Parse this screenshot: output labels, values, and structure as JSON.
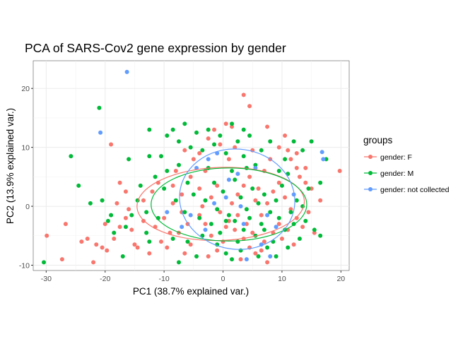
{
  "chart_data": {
    "type": "scatter",
    "title": "PCA of SARS-Cov2 gene expression by gender",
    "xlabel": "PC1 (38.7% explained var.)",
    "ylabel": "PC2 (13.9% explained var.)",
    "xlim": [
      -32.2,
      21.4
    ],
    "ylim": [
      -10.9,
      24.7
    ],
    "xticks": [
      -30,
      -20,
      -10,
      0,
      10,
      20
    ],
    "yticks": [
      -10,
      0,
      10,
      20
    ],
    "grid": true,
    "legend_title": "groups",
    "legend_position": "right",
    "series": [
      {
        "name": "gender: F",
        "color": "#F8766D",
        "points": [
          [
            -29.9,
            -5.0
          ],
          [
            -27.3,
            -9.0
          ],
          [
            -26.7,
            -3.0
          ],
          [
            -23.0,
            -5.5
          ],
          [
            -21.5,
            -6.5
          ],
          [
            -20.0,
            -3.0
          ],
          [
            -19.7,
            -7.5
          ],
          [
            -18.5,
            -5.5
          ],
          [
            -17.5,
            -3.5
          ],
          [
            -16.5,
            -2.0
          ],
          [
            -15.5,
            -4.0
          ],
          [
            -15.0,
            -6.5
          ],
          [
            -13.5,
            -2.5
          ],
          [
            -19.0,
            10.5
          ],
          [
            -17.5,
            4.0
          ],
          [
            -16.5,
            2.5
          ],
          [
            -18.0,
            0.5
          ],
          [
            -16.0,
            -0.5
          ],
          [
            -12.5,
            -8.0
          ],
          [
            -9.5,
            -7.0
          ],
          [
            -11.0,
            4.0
          ],
          [
            -12.0,
            2.5
          ],
          [
            -13.5,
            1.0
          ],
          [
            -10.0,
            -2.0
          ],
          [
            -7.5,
            -4.5
          ],
          [
            -6.0,
            -3.0
          ],
          [
            -8.5,
            0.5
          ],
          [
            -7.0,
            2.0
          ],
          [
            -5.5,
            5.0
          ],
          [
            -4.0,
            3.0
          ],
          [
            -3.0,
            6.0
          ],
          [
            -5.0,
            8.0
          ],
          [
            -4.0,
            9.0
          ],
          [
            -2.5,
            11.5
          ],
          [
            -1.5,
            13.0
          ],
          [
            0.5,
            14.0
          ],
          [
            1.5,
            13.5
          ],
          [
            3.5,
            18.9
          ],
          [
            4.5,
            17.0
          ],
          [
            7.5,
            13.5
          ],
          [
            9.5,
            10.0
          ],
          [
            10.5,
            12.0
          ],
          [
            11.0,
            9.5
          ],
          [
            11.5,
            8.0
          ],
          [
            12.5,
            6.5
          ],
          [
            13.0,
            5.0
          ],
          [
            14.0,
            4.0
          ],
          [
            15.0,
            3.0
          ],
          [
            19.8,
            6.0
          ],
          [
            9.5,
            -3.0
          ],
          [
            8.5,
            -4.5
          ],
          [
            10.0,
            -5.5
          ],
          [
            7.0,
            -6.0
          ],
          [
            6.5,
            -7.5
          ],
          [
            7.5,
            -9.5
          ],
          [
            5.5,
            -8.0
          ],
          [
            4.5,
            -7.0
          ],
          [
            3.5,
            -5.5
          ],
          [
            2.0,
            -4.0
          ],
          [
            1.0,
            -2.5
          ],
          [
            0.0,
            -6.0
          ],
          [
            -1.0,
            -7.5
          ],
          [
            -2.0,
            -5.0
          ],
          [
            -3.0,
            -3.0
          ],
          [
            -4.0,
            -1.5
          ],
          [
            -5.5,
            -6.5
          ],
          [
            -6.5,
            -8.0
          ],
          [
            -2.5,
            -8.5
          ],
          [
            -0.5,
            -1.0
          ],
          [
            1.5,
            0.5
          ],
          [
            2.5,
            2.0
          ],
          [
            3.5,
            3.5
          ],
          [
            4.5,
            5.0
          ],
          [
            5.5,
            1.0
          ],
          [
            6.5,
            -1.5
          ],
          [
            7.5,
            0.5
          ],
          [
            8.5,
            2.5
          ],
          [
            9.5,
            4.0
          ],
          [
            10.5,
            1.5
          ],
          [
            11.5,
            -0.5
          ],
          [
            12.5,
            -2.0
          ],
          [
            13.5,
            -3.5
          ],
          [
            11.0,
            -4.0
          ],
          [
            -2.0,
            1.5
          ],
          [
            -3.5,
            0.0
          ],
          [
            -1.0,
            3.5
          ],
          [
            0.5,
            -3.5
          ],
          [
            2.5,
            -1.5
          ],
          [
            4.0,
            -3.0
          ],
          [
            5.0,
            -4.5
          ],
          [
            6.0,
            3.0
          ],
          [
            7.0,
            6.0
          ],
          [
            8.0,
            8.0
          ],
          [
            -8.0,
            6.0
          ],
          [
            -9.0,
            -4.5
          ],
          [
            -6.5,
            9.5
          ],
          [
            -10.5,
            -6.0
          ],
          [
            -11.5,
            -3.5
          ],
          [
            -7.0,
            -1.0
          ],
          [
            1.0,
            8.0
          ],
          [
            2.0,
            10.0
          ],
          [
            -0.5,
            10.5
          ],
          [
            3.0,
            -9.0
          ],
          [
            12.0,
            -6.5
          ],
          [
            14.5,
            -1.0
          ],
          [
            15.5,
            -4.5
          ],
          [
            16.5,
            1.0
          ],
          [
            14.0,
            6.5
          ],
          [
            12.5,
            9.0
          ],
          [
            -14.5,
            -7.0
          ],
          [
            -20.5,
            -7.0
          ],
          [
            -22.0,
            -9.5
          ],
          [
            -24.0,
            -6.0
          ],
          [
            -8.5,
            3.5
          ],
          [
            5.0,
            9.5
          ]
        ]
      },
      {
        "name": "gender: M",
        "color": "#00BA38",
        "points": [
          [
            -30.4,
            -9.5
          ],
          [
            -25.8,
            8.5
          ],
          [
            -24.5,
            3.5
          ],
          [
            -21.0,
            16.7
          ],
          [
            -20.5,
            1.0
          ],
          [
            -19.5,
            -2.5
          ],
          [
            -18.5,
            -4.5
          ],
          [
            -17.0,
            -8.5
          ],
          [
            -15.5,
            -1.5
          ],
          [
            -14.0,
            3.5
          ],
          [
            -13.0,
            -4.5
          ],
          [
            -12.5,
            -6.0
          ],
          [
            -11.0,
            -2.0
          ],
          [
            -12.5,
            13.0
          ],
          [
            -10.5,
            8.5
          ],
          [
            -12.5,
            8.5
          ],
          [
            -9.5,
            6.0
          ],
          [
            -8.5,
            -5.5
          ],
          [
            -7.5,
            -9.5
          ],
          [
            -6.0,
            -6.0
          ],
          [
            -4.5,
            -8.5
          ],
          [
            -3.5,
            -5.0
          ],
          [
            -2.0,
            -3.0
          ],
          [
            -1.0,
            -6.5
          ],
          [
            0.5,
            -8.0
          ],
          [
            1.5,
            -9.0
          ],
          [
            2.5,
            -6.0
          ],
          [
            3.5,
            -4.0
          ],
          [
            4.5,
            -2.0
          ],
          [
            5.5,
            -5.0
          ],
          [
            6.5,
            -3.0
          ],
          [
            7.5,
            -7.0
          ],
          [
            8.5,
            -6.0
          ],
          [
            9.5,
            -2.0
          ],
          [
            10.5,
            -4.0
          ],
          [
            11.5,
            -1.0
          ],
          [
            12.5,
            1.0
          ],
          [
            13.5,
            0.0
          ],
          [
            14.5,
            3.0
          ],
          [
            15.5,
            -4.0
          ],
          [
            16.5,
            -5.0
          ],
          [
            17.5,
            8.0
          ],
          [
            16.5,
            4.0
          ],
          [
            15.0,
            11.0
          ],
          [
            13.5,
            9.5
          ],
          [
            12.0,
            11.0
          ],
          [
            10.5,
            8.0
          ],
          [
            9.5,
            6.0
          ],
          [
            8.0,
            11.0
          ],
          [
            6.5,
            9.5
          ],
          [
            5.5,
            7.0
          ],
          [
            4.5,
            12.0
          ],
          [
            3.5,
            13.0
          ],
          [
            2.5,
            11.0
          ],
          [
            1.5,
            14.0
          ],
          [
            0.5,
            9.0
          ],
          [
            -0.5,
            12.0
          ],
          [
            -1.5,
            10.5
          ],
          [
            -2.5,
            13.0
          ],
          [
            -3.5,
            9.5
          ],
          [
            -4.5,
            12.5
          ],
          [
            -5.5,
            10.0
          ],
          [
            -6.5,
            14.0
          ],
          [
            -7.5,
            11.0
          ],
          [
            -8.5,
            13.0
          ],
          [
            -9.5,
            12.0
          ],
          [
            -11.5,
            5.0
          ],
          [
            -10.0,
            3.0
          ],
          [
            -8.0,
            1.0
          ],
          [
            -6.5,
            -1.0
          ],
          [
            -5.0,
            2.0
          ],
          [
            -3.0,
            1.0
          ],
          [
            -1.5,
            4.0
          ],
          [
            0.0,
            2.5
          ],
          [
            1.0,
            -1.5
          ],
          [
            2.0,
            4.5
          ],
          [
            3.0,
            1.5
          ],
          [
            4.0,
            -0.5
          ],
          [
            5.0,
            3.0
          ],
          [
            6.0,
            0.5
          ],
          [
            7.0,
            2.0
          ],
          [
            8.0,
            -1.0
          ],
          [
            9.0,
            1.0
          ],
          [
            10.0,
            3.5
          ],
          [
            11.0,
            5.5
          ],
          [
            12.0,
            -3.0
          ],
          [
            13.0,
            -5.5
          ],
          [
            14.0,
            -2.5
          ],
          [
            -16.0,
            8.0
          ],
          [
            -14.5,
            1.0
          ],
          [
            -13.0,
            -1.0
          ],
          [
            -4.0,
            -2.0
          ],
          [
            -2.5,
            6.5
          ],
          [
            6.0,
            -8.5
          ],
          [
            3.0,
            -7.5
          ],
          [
            -0.5,
            -4.5
          ],
          [
            1.5,
            6.0
          ],
          [
            -16.5,
            -3.5
          ],
          [
            -22.5,
            0.5
          ],
          [
            -1.0,
            -0.5
          ],
          [
            2.0,
            -2.5
          ],
          [
            4.0,
            6.5
          ],
          [
            -6.0,
            4.0
          ],
          [
            9.0,
            -8.5
          ],
          [
            11.0,
            -7.0
          ],
          [
            7.0,
            -4.0
          ],
          [
            -19.0,
            -1.5
          ],
          [
            -7.5,
            7.0
          ],
          [
            0.5,
            -2.5
          ],
          [
            3.5,
            8.5
          ]
        ]
      },
      {
        "name": "gender: not collected",
        "color": "#619CFF",
        "points": [
          [
            -16.3,
            22.8
          ],
          [
            -20.8,
            12.5
          ],
          [
            16.8,
            9.2
          ],
          [
            17.0,
            8.0
          ],
          [
            8.0,
            -8.5
          ],
          [
            6.5,
            -6.5
          ],
          [
            4.0,
            -9.0
          ],
          [
            3.5,
            -3.0
          ],
          [
            -3.0,
            -4.0
          ],
          [
            -5.5,
            -1.5
          ],
          [
            -7.0,
            -3.5
          ],
          [
            1.0,
            4.5
          ],
          [
            2.5,
            5.5
          ],
          [
            -1.5,
            0.5
          ],
          [
            0.5,
            1.5
          ],
          [
            3.0,
            0.0
          ],
          [
            -2.5,
            8.0
          ],
          [
            -1.0,
            9.0
          ],
          [
            5.5,
            6.5
          ],
          [
            9.0,
            -3.5
          ],
          [
            -9.5,
            -1.0
          ],
          [
            7.5,
            -1.5
          ],
          [
            12.0,
            2.0
          ],
          [
            -4.5,
            6.5
          ]
        ]
      }
    ],
    "ellipses": [
      {
        "series": "gender: F",
        "cx": -0.4,
        "cy": 0.4,
        "rx": 14.2,
        "ry": 6.2,
        "angle": 2
      },
      {
        "series": "gender: M",
        "cx": 1.0,
        "cy": 0.3,
        "rx": 13.2,
        "ry": 6.2,
        "angle": 0
      },
      {
        "series": "gender: not collected",
        "cx": 2.4,
        "cy": 1.2,
        "rx": 9.8,
        "ry": 8.5,
        "angle": -8
      }
    ]
  }
}
